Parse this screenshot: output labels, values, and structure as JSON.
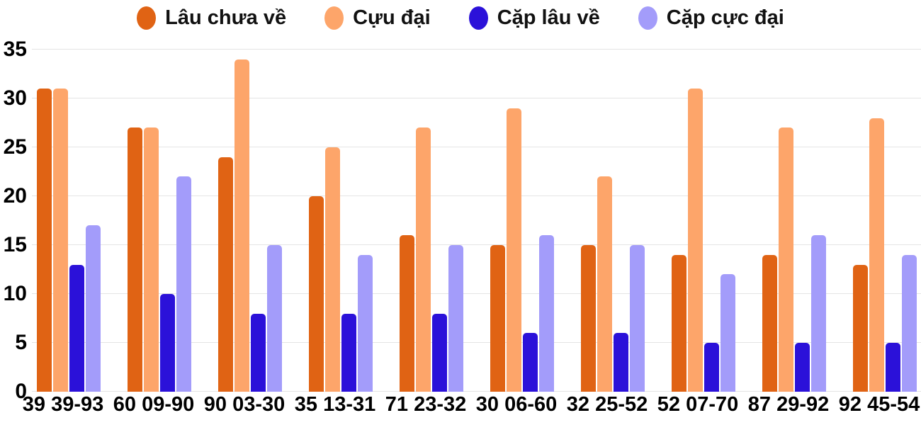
{
  "chart_data": {
    "type": "bar",
    "title": "",
    "categories": [
      "39 39-93",
      "60 09-90",
      "90 03-30",
      "35 13-31",
      "71 23-32",
      "30 06-60",
      "32 25-52",
      "52 07-70",
      "87 29-92",
      "92 45-54"
    ],
    "series": [
      {
        "name": "Lâu chưa về",
        "color": "#e06314",
        "values": [
          31,
          27,
          24,
          20,
          16,
          15,
          15,
          14,
          14,
          13
        ]
      },
      {
        "name": "Cựu đại",
        "color": "#fda56a",
        "values": [
          31,
          27,
          34,
          25,
          27,
          29,
          22,
          31,
          27,
          28
        ]
      },
      {
        "name": "Cặp lâu về",
        "color": "#2b11d9",
        "values": [
          13,
          10,
          8,
          8,
          8,
          6,
          6,
          5,
          5,
          5
        ]
      },
      {
        "name": "Cặp cực đại",
        "color": "#a39cfa",
        "values": [
          17,
          22,
          15,
          14,
          15,
          16,
          15,
          12,
          16,
          14
        ]
      }
    ],
    "xlabel": "",
    "ylabel": "",
    "ylim": [
      0,
      35
    ],
    "y_ticks": [
      0,
      5,
      10,
      15,
      20,
      25,
      30,
      35
    ],
    "grid": "horizontal",
    "legend_position": "top-center"
  },
  "colors": {
    "background": "#ffffff",
    "gridline": "#e4e4e4",
    "axis_text": "#000000",
    "legend_text": "#111111"
  }
}
